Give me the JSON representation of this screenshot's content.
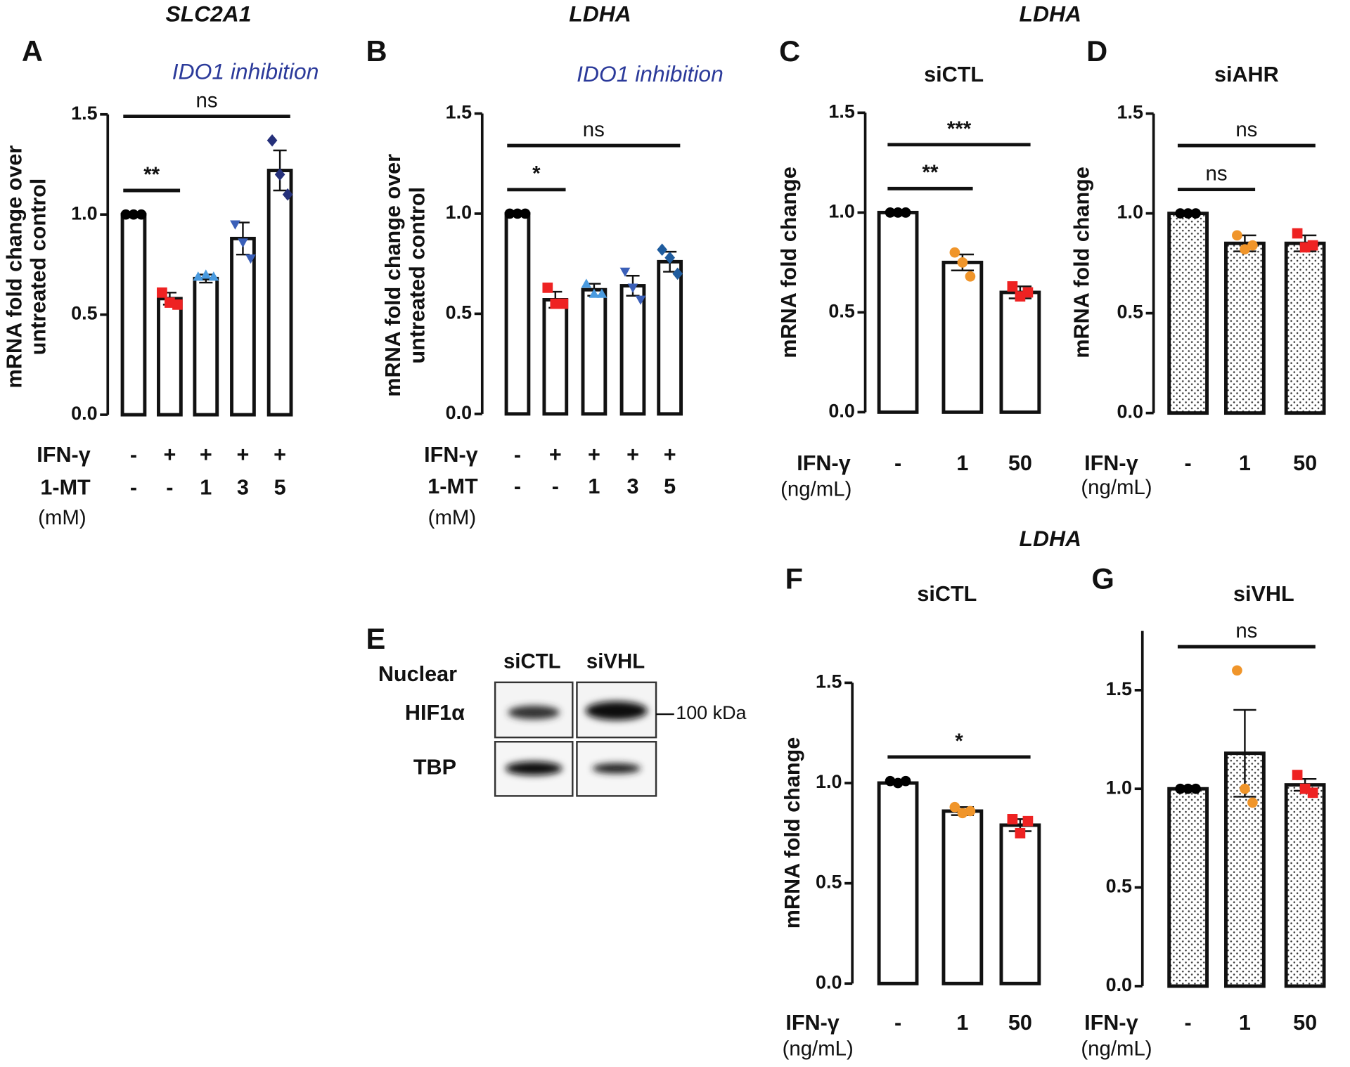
{
  "chart_data": [
    {
      "type": "bar",
      "letter": "A",
      "supertitle": "SLC2A1",
      "subtitle": "IDO1 inhibition",
      "ylabel": [
        "mRNA fold change over",
        "untreated control"
      ],
      "values": [
        1.0,
        0.58,
        0.68,
        0.88,
        1.22
      ],
      "errors": [
        0,
        0.03,
        0.02,
        0.08,
        0.1
      ],
      "points": [
        [
          1,
          1,
          1
        ],
        [
          0.61,
          0.56,
          0.55
        ],
        [
          0.69,
          0.7,
          0.69
        ],
        [
          0.95,
          0.86,
          0.78
        ],
        [
          1.37,
          1.2,
          1.1
        ]
      ],
      "point_colors": [
        "#000000",
        "#ee2222",
        "#4a9be0",
        "#3a5fb8",
        "#25307a"
      ],
      "markers": [
        "circle",
        "square",
        "triangle",
        "triangle-down",
        "diamond"
      ],
      "bar_fill": "white",
      "rows": [
        {
          "label": "IFN-γ",
          "values": [
            "-",
            "+",
            "+",
            "+",
            "+"
          ]
        },
        {
          "label": "1-MT",
          "values": [
            "-",
            "-",
            "1",
            "3",
            "5"
          ]
        }
      ],
      "unit_label": "(mM)",
      "brackets": [
        {
          "from": 0,
          "to": 1,
          "label": "**"
        },
        {
          "from": 0,
          "to": 4,
          "label": "ns"
        }
      ],
      "ylim": [
        0,
        1.5
      ],
      "yticks": [
        {
          "value": 0,
          "label": "0.0"
        },
        {
          "value": 0.5,
          "label": "0.5"
        },
        {
          "value": 1,
          "label": "1.0"
        },
        {
          "value": 1.5,
          "label": "1.5"
        }
      ]
    },
    {
      "type": "bar",
      "letter": "B",
      "supertitle": "LDHA",
      "subtitle": "IDO1 inhibition",
      "ylabel": [
        "mRNA fold change over",
        "untreated control"
      ],
      "values": [
        1.0,
        0.57,
        0.62,
        0.64,
        0.76
      ],
      "errors": [
        0,
        0.04,
        0.03,
        0.05,
        0.05
      ],
      "points": [
        [
          1,
          1,
          1
        ],
        [
          0.63,
          0.55,
          0.55
        ],
        [
          0.65,
          0.6,
          0.6
        ],
        [
          0.71,
          0.63,
          0.57
        ],
        [
          0.82,
          0.78,
          0.7
        ]
      ],
      "point_colors": [
        "#000000",
        "#ee2222",
        "#4a9be0",
        "#3a5fb8",
        "#1f5c9e"
      ],
      "markers": [
        "circle",
        "square",
        "triangle",
        "triangle-down",
        "diamond"
      ],
      "bar_fill": "white",
      "rows": [
        {
          "label": "IFN-γ",
          "values": [
            "-",
            "+",
            "+",
            "+",
            "+"
          ]
        },
        {
          "label": "1-MT",
          "values": [
            "-",
            "-",
            "1",
            "3",
            "5"
          ]
        }
      ],
      "unit_label": "(mM)",
      "brackets": [
        {
          "from": 0,
          "to": 1,
          "label": "*"
        },
        {
          "from": 0,
          "to": 4,
          "label": "ns"
        }
      ],
      "ylim": [
        0,
        1.5
      ],
      "yticks": [
        {
          "value": 0,
          "label": "0.0"
        },
        {
          "value": 0.5,
          "label": "0.5"
        },
        {
          "value": 1,
          "label": "1.0"
        },
        {
          "value": 1.5,
          "label": "1.5"
        }
      ]
    },
    {
      "type": "bar",
      "letter": "C",
      "supertitle": "LDHA",
      "subtitle": "siCTL",
      "ylabel": [
        "mRNA fold change"
      ],
      "values": [
        1.0,
        0.75,
        0.6
      ],
      "errors": [
        0,
        0.04,
        0.03
      ],
      "points": [
        [
          1,
          1,
          1
        ],
        [
          0.8,
          0.75,
          0.68
        ],
        [
          0.63,
          0.58,
          0.6
        ]
      ],
      "point_colors": [
        "#000000",
        "#f0952a",
        "#ee2222"
      ],
      "markers": [
        "circle",
        "circle",
        "square"
      ],
      "bar_fill": "white",
      "rows": [
        {
          "label": "IFN-γ",
          "values": [
            "-",
            "1",
            "50"
          ]
        }
      ],
      "unit_label": "(ng/mL)",
      "brackets": [
        {
          "from": 0,
          "to": 1,
          "label": "**"
        },
        {
          "from": 0,
          "to": 2,
          "label": "***"
        }
      ],
      "ylim": [
        0,
        1.5
      ],
      "yticks": [
        {
          "value": 0,
          "label": "0.0"
        },
        {
          "value": 0.5,
          "label": "0.5"
        },
        {
          "value": 1,
          "label": "1.0"
        },
        {
          "value": 1.5,
          "label": "1.5"
        }
      ]
    },
    {
      "type": "bar",
      "letter": "D",
      "subtitle": "siAHR",
      "ylabel": [
        "mRNA fold change"
      ],
      "values": [
        1.0,
        0.85,
        0.85
      ],
      "errors": [
        0,
        0.04,
        0.04
      ],
      "points": [
        [
          1,
          1,
          1
        ],
        [
          0.89,
          0.82,
          0.84
        ],
        [
          0.9,
          0.83,
          0.84
        ]
      ],
      "point_colors": [
        "#000000",
        "#f0952a",
        "#ee2222"
      ],
      "markers": [
        "circle",
        "circle",
        "square"
      ],
      "bar_fill": "dotted",
      "rows": [
        {
          "label": "IFN-γ",
          "values": [
            "-",
            "1",
            "50"
          ]
        }
      ],
      "unit_label": "(ng/mL)",
      "brackets": [
        {
          "from": 0,
          "to": 1,
          "label": "ns"
        },
        {
          "from": 0,
          "to": 2,
          "label": "ns"
        }
      ],
      "ylim": [
        0,
        1.5
      ],
      "yticks": [
        {
          "value": 0,
          "label": "0.0"
        },
        {
          "value": 0.5,
          "label": "0.5"
        },
        {
          "value": 1,
          "label": "1.0"
        },
        {
          "value": 1.5,
          "label": "1.5"
        }
      ]
    },
    {
      "type": "bar",
      "letter": "F",
      "supertitle": "LDHA",
      "subtitle": "siCTL",
      "ylabel": [
        "mRNA fold change"
      ],
      "values": [
        1.0,
        0.86,
        0.79
      ],
      "errors": [
        0,
        0.02,
        0.03
      ],
      "points": [
        [
          1.01,
          1,
          1.01
        ],
        [
          0.88,
          0.85,
          0.86
        ],
        [
          0.82,
          0.75,
          0.81
        ]
      ],
      "point_colors": [
        "#000000",
        "#f0952a",
        "#ee2222"
      ],
      "markers": [
        "circle",
        "circle",
        "square"
      ],
      "bar_fill": "white",
      "rows": [
        {
          "label": "IFN-γ",
          "values": [
            "-",
            "1",
            "50"
          ]
        }
      ],
      "unit_label": "(ng/mL)",
      "brackets": [
        {
          "from": 0,
          "to": 2,
          "label": "*"
        }
      ],
      "ylim": [
        0,
        1.5
      ],
      "yticks": [
        {
          "value": 0,
          "label": "0.0"
        },
        {
          "value": 0.5,
          "label": "0.5"
        },
        {
          "value": 1,
          "label": "1.0"
        },
        {
          "value": 1.5,
          "label": "1.5"
        }
      ]
    },
    {
      "type": "bar",
      "letter": "G",
      "subtitle": "siVHL",
      "values": [
        1.0,
        1.18,
        1.02
      ],
      "errors": [
        0,
        0.22,
        0.03
      ],
      "points": [
        [
          1,
          1,
          1
        ],
        [
          1.6,
          1.0,
          0.93
        ],
        [
          1.07,
          1.0,
          0.98
        ]
      ],
      "point_colors": [
        "#000000",
        "#f0952a",
        "#ee2222"
      ],
      "markers": [
        "circle",
        "circle",
        "square"
      ],
      "bar_fill": "dotted",
      "rows": [
        {
          "label": "IFN-γ",
          "values": [
            "-",
            "1",
            "50"
          ]
        }
      ],
      "unit_label": "(ng/mL)",
      "brackets": [
        {
          "from": 0,
          "to": 2,
          "label": "ns"
        }
      ],
      "ylim": [
        0,
        1.8
      ],
      "yticks": [
        {
          "value": 0,
          "label": "0.0"
        },
        {
          "value": 0.5,
          "label": "0.5"
        },
        {
          "value": 1,
          "label": "1.0"
        },
        {
          "value": 1.5,
          "label": "1.5"
        }
      ]
    }
  ],
  "blot": {
    "letter": "E",
    "fraction": "Nuclear",
    "lanes": [
      "siCTL",
      "siVHL"
    ],
    "proteins": [
      "HIF1α",
      "TBP"
    ],
    "marker": "100 kDa"
  }
}
